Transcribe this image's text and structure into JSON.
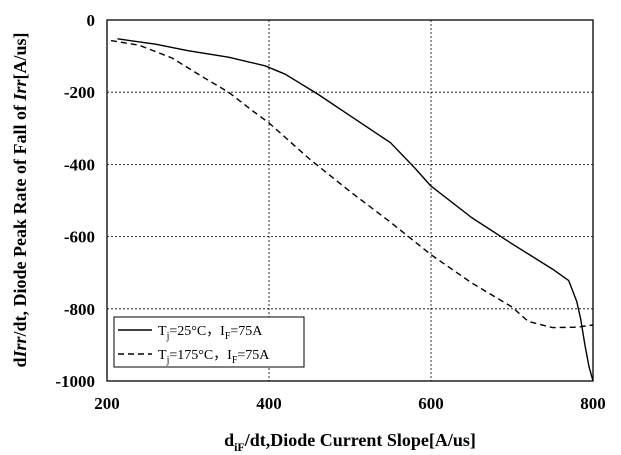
{
  "chart_data": {
    "type": "line",
    "xlabel": {
      "pre": "d",
      "sub": "iF",
      "post": "/dt,Diode Current Slope[A/us]"
    },
    "ylabel": {
      "pre": "d",
      "italic": "Irr",
      "mid": "/dt, Diode Peak Rate of Fall of ",
      "italic2": "Irr",
      "post": "[A/us]"
    },
    "xlim": [
      200,
      800
    ],
    "ylim": [
      -1000,
      0
    ],
    "xticks": [
      200,
      400,
      600,
      800
    ],
    "yticks": [
      0,
      -200,
      -400,
      -600,
      -800,
      -1000
    ],
    "grid": "dashed",
    "legend_position": "bottom-left",
    "series": [
      {
        "name": "Tj=25°C，IF=75A",
        "legend": {
          "a": "T",
          "a_sub": "j",
          "b": "=25°C，I",
          "b_sub": "F",
          "c": "=75A"
        },
        "style": "solid",
        "x": [
          213,
          260,
          300,
          350,
          395,
          420,
          460,
          500,
          550,
          580,
          600,
          650,
          700,
          750,
          770,
          780,
          785,
          790,
          795,
          800
        ],
        "y": [
          -52,
          -67,
          -85,
          -103,
          -127,
          -150,
          -205,
          -265,
          -340,
          -410,
          -460,
          -547,
          -620,
          -690,
          -722,
          -780,
          -830,
          -900,
          -960,
          -1000
        ]
      },
      {
        "name": "Tj=175°C，IF=75A",
        "legend": {
          "a": "T",
          "a_sub": "j",
          "b": "=175°C，I",
          "b_sub": "F",
          "c": "=75A"
        },
        "style": "dashed",
        "x": [
          205,
          240,
          280,
          320,
          350,
          380,
          400,
          450,
          500,
          550,
          600,
          650,
          700,
          720,
          750,
          780,
          800
        ],
        "y": [
          -57,
          -70,
          -105,
          -160,
          -200,
          -252,
          -285,
          -385,
          -475,
          -560,
          -650,
          -728,
          -795,
          -835,
          -852,
          -851,
          -845
        ]
      }
    ]
  }
}
